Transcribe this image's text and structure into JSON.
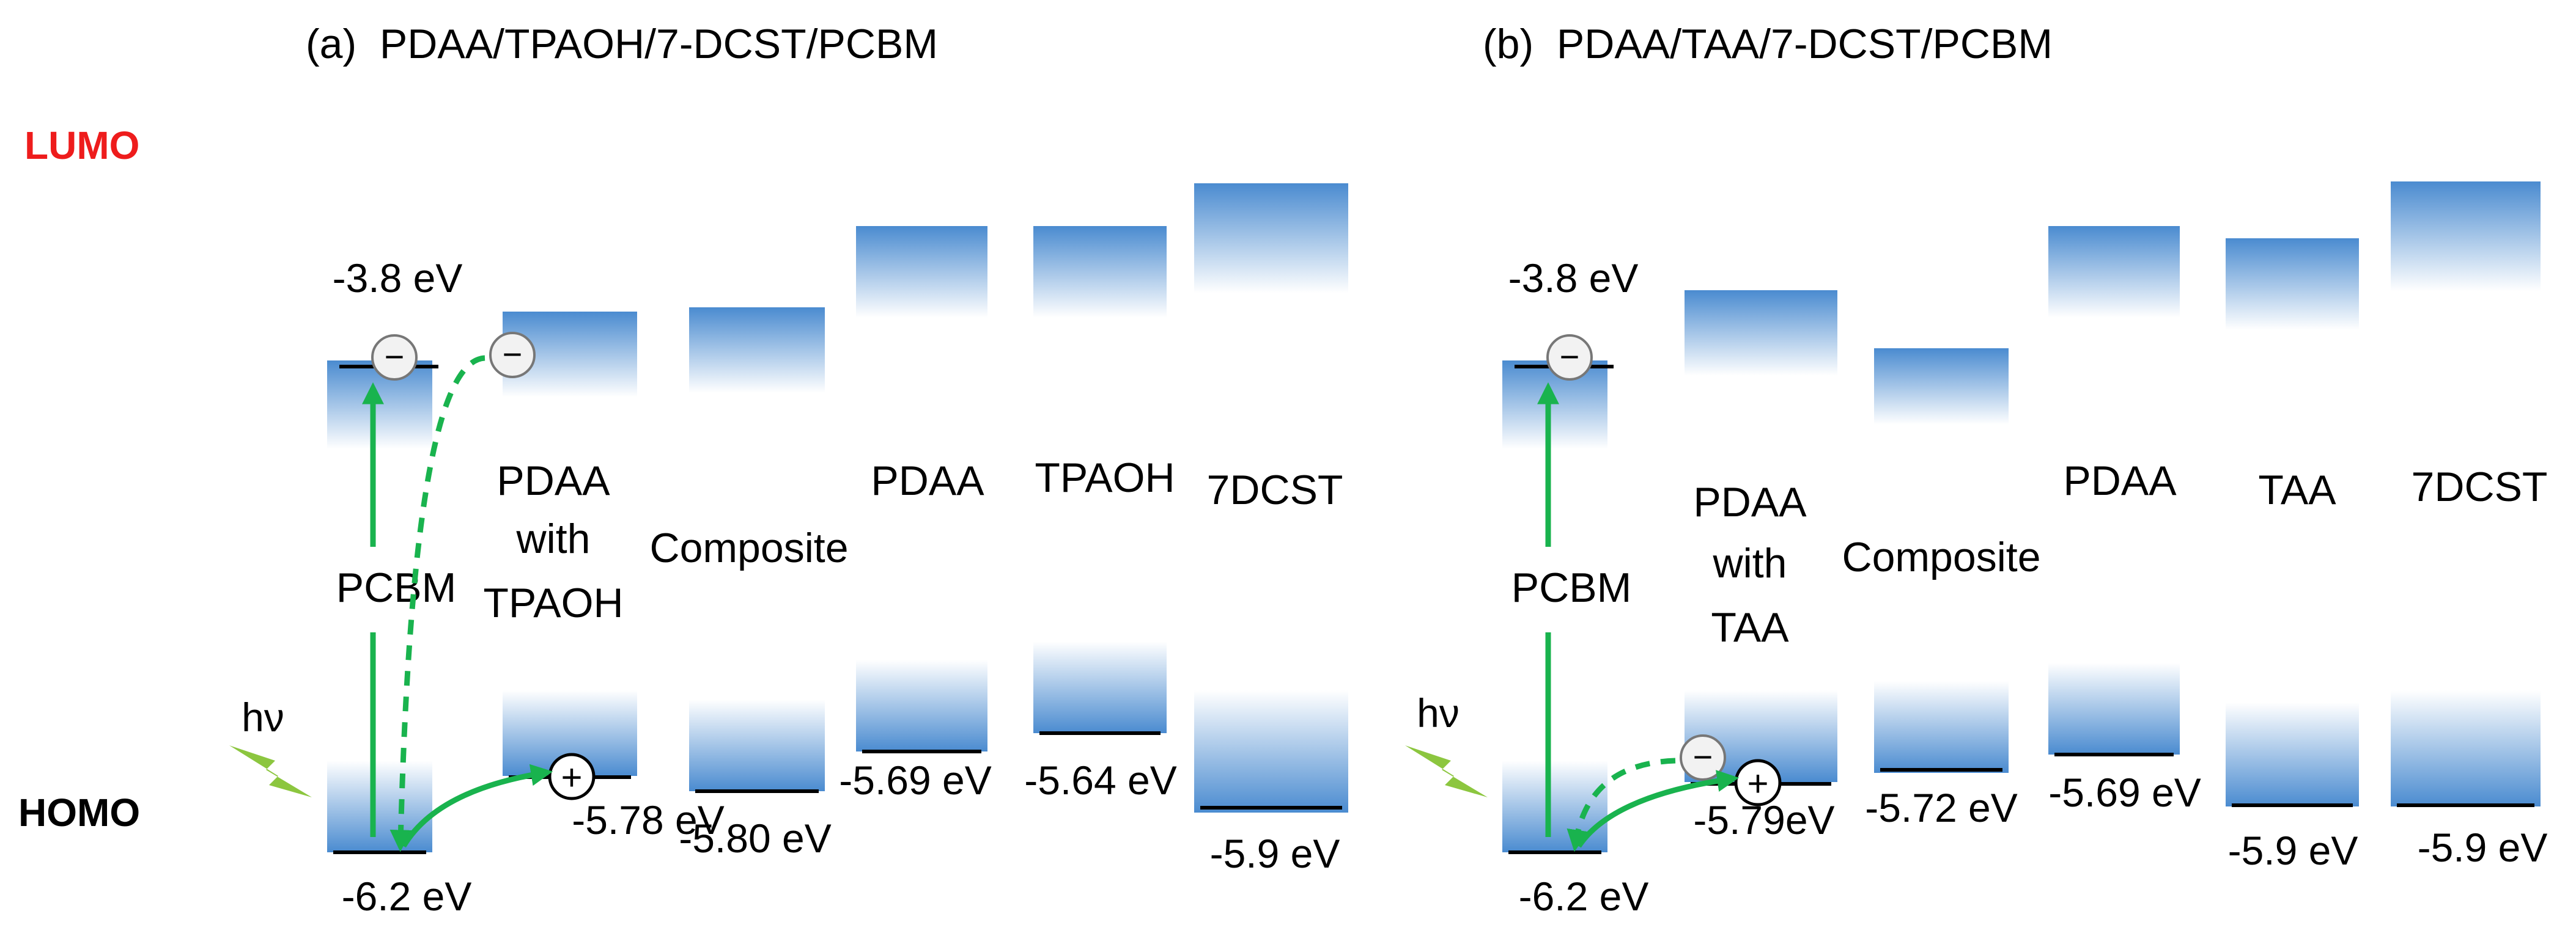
{
  "colors": {
    "lumo_label": "#ee1c1c",
    "arrow": "#19b34e",
    "bolt": "#8cc63f",
    "band_top": "#4a8bd0",
    "band_bottom": "#ffffff",
    "level_line": "#000000",
    "electron_fill": "#f2f2f2"
  },
  "side_labels": {
    "lumo": "LUMO",
    "homo": "HOMO"
  },
  "symbols": {
    "photon": "hν",
    "electron": "−",
    "hole": "+"
  },
  "panels": [
    {
      "title": "(a)  PDAA/TPAOH/7-DCST/PCBM",
      "materials": [
        {
          "id": "pcbm",
          "label_lines": [
            "PCBM"
          ],
          "lumo_text": "-3.8 eV",
          "homo_text": "-6.2 eV",
          "lumo_ev": -3.8,
          "homo_ev": -6.2
        },
        {
          "id": "blend",
          "label_lines": [
            "PDAA",
            "with",
            "TPAOH"
          ],
          "lumo_text": "",
          "homo_text": "-5.78 eV",
          "homo_ev": -5.78
        },
        {
          "id": "composite",
          "label_lines": [
            "Composite"
          ],
          "lumo_text": "",
          "homo_text": "-5.80 eV",
          "homo_ev": -5.8
        },
        {
          "id": "pdaa",
          "label_lines": [
            "PDAA"
          ],
          "lumo_text": "",
          "homo_text": "-5.69 eV",
          "homo_ev": -5.69
        },
        {
          "id": "tpaoh",
          "label_lines": [
            "TPAOH"
          ],
          "lumo_text": "",
          "homo_text": "-5.64 eV",
          "homo_ev": -5.64
        },
        {
          "id": "7dcst",
          "label_lines": [
            "7DCST"
          ],
          "lumo_text": "",
          "homo_text": "-5.9 eV",
          "homo_ev": -5.9
        }
      ]
    },
    {
      "title": "(b)  PDAA/TAA/7-DCST/PCBM",
      "materials": [
        {
          "id": "pcbm",
          "label_lines": [
            "PCBM"
          ],
          "lumo_text": "-3.8 eV",
          "homo_text": "-6.2 eV",
          "lumo_ev": -3.8,
          "homo_ev": -6.2
        },
        {
          "id": "blend",
          "label_lines": [
            "PDAA",
            "with",
            "TAA"
          ],
          "lumo_text": "",
          "homo_text": "-5.79eV",
          "homo_ev": -5.79
        },
        {
          "id": "composite",
          "label_lines": [
            "Composite"
          ],
          "lumo_text": "",
          "homo_text": "-5.72 eV",
          "homo_ev": -5.72
        },
        {
          "id": "pdaa",
          "label_lines": [
            "PDAA"
          ],
          "lumo_text": "",
          "homo_text": "-5.69 eV",
          "homo_ev": -5.69
        },
        {
          "id": "taa",
          "label_lines": [
            "TAA"
          ],
          "lumo_text": "",
          "homo_text": "-5.9 eV",
          "homo_ev": -5.9
        },
        {
          "id": "7dcst",
          "label_lines": [
            "7DCST"
          ],
          "lumo_text": "",
          "homo_text": "-5.9 eV",
          "homo_ev": -5.9
        }
      ]
    }
  ]
}
